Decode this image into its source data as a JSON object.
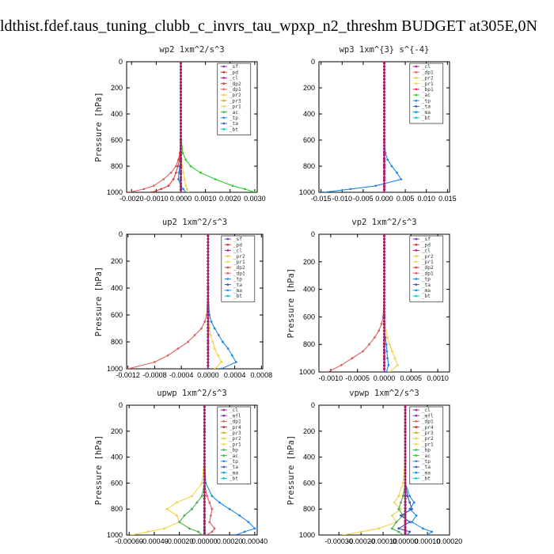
{
  "page": {
    "title": "ldthist.fdef.taus_tuning_clubb_c_invrs_tau_wpxp_n2_threshm  BUDGET at305E,0N"
  },
  "colors": {
    "_sf": "#7b2fbf",
    "_pd": "#c0392b",
    "_cl": "#b5179e",
    "_dp2": "#e53935",
    "_dp1": "#e06060",
    "_dp3": "#e57373",
    "_pr2": "#f7c531",
    "_pr1": "#f0d44a",
    "_pr3": "#d5a800",
    "_pr4": "#c62828",
    "_bp1": "#e91e63",
    "_bp": "#4caf50",
    "_ac": "#29d02a",
    "_tp": "#1e88e5",
    "_ta": "#3f51b5",
    "_ma": "#039be5",
    "_mfl": "#8e24aa",
    "_bt": "#00c8d7"
  },
  "chart_data": [
    {
      "type": "line",
      "title": "wp2   1xm^2/s^3",
      "ylabel": "Pressure [hPa]",
      "xlim": [
        -0.0022,
        0.0031
      ],
      "ylim": [
        1000,
        0
      ],
      "yticks": [
        0,
        200,
        400,
        600,
        800,
        1000
      ],
      "xticks": [
        -0.002,
        -0.001,
        0.0,
        0.001,
        0.002,
        0.003
      ],
      "xtick_labels": [
        "-0.0020",
        "-0.0010",
        "0.0000",
        "0.0010",
        "0.0020",
        "0.0030"
      ],
      "legend": [
        "_sf",
        "_pd",
        "_cl",
        "_dp2",
        "_dp1",
        "_pr2",
        "_pr3",
        "_pr1",
        "_ac",
        "_tp",
        "_ta",
        "_bt"
      ],
      "y": [
        0,
        200,
        400,
        600,
        700,
        750,
        800,
        850,
        900,
        950,
        975,
        1000
      ],
      "series": [
        {
          "name": "_ac",
          "values": [
            0,
            0,
            0,
            2e-05,
            8e-05,
            0.0002,
            0.0004,
            0.0008,
            0.0014,
            0.0021,
            0.0026,
            0.003
          ]
        },
        {
          "name": "_dp1",
          "values": [
            0,
            0,
            0,
            -1e-05,
            -4e-05,
            -0.0001,
            -0.0002,
            -0.0004,
            -0.0007,
            -0.0011,
            -0.0015,
            -0.0021
          ]
        },
        {
          "name": "_dp2",
          "values": [
            0,
            0,
            0,
            -1e-05,
            -3e-05,
            -6e-05,
            -0.00012,
            -0.0002,
            -0.0003,
            -0.0005,
            -0.0008,
            -0.0012
          ]
        },
        {
          "name": "_tp",
          "values": [
            0,
            0,
            0,
            0,
            0,
            -2e-05,
            -4e-05,
            -8e-05,
            -0.0001,
            0,
            0.0001,
            0.0002
          ]
        },
        {
          "name": "_pr1",
          "values": [
            0,
            0,
            0,
            0,
            1e-05,
            3e-05,
            6e-05,
            0.0001,
            0.00015,
            0.0002,
            0.00025,
            0.0003
          ]
        },
        {
          "name": "_sf",
          "values": [
            0,
            0,
            0,
            0,
            0,
            0,
            0,
            0,
            0,
            0,
            0,
            0
          ]
        }
      ]
    },
    {
      "type": "line",
      "title": "wp3   1xm^{3} s^{-4}",
      "ylabel": "",
      "xlim": [
        -0.0155,
        0.0155
      ],
      "ylim": [
        1000,
        0
      ],
      "yticks": [
        0,
        200,
        400,
        600,
        800,
        1000
      ],
      "xticks": [
        -0.015,
        -0.01,
        -0.005,
        0.0,
        0.005,
        0.01,
        0.015
      ],
      "xtick_labels": [
        "-0.015",
        "-0.010",
        "-0.005",
        "0.000",
        "0.005",
        "0.010",
        "0.015"
      ],
      "legend": [
        "_cl",
        "_dp1",
        "_pr2",
        "_pr1",
        "_bp1",
        "_ac",
        "_tp",
        "_ta",
        "_ma",
        "_bt"
      ],
      "y": [
        0,
        200,
        400,
        600,
        700,
        750,
        800,
        850,
        900,
        950,
        975,
        1000
      ],
      "series": [
        {
          "name": "_tp",
          "values": [
            0,
            0,
            0,
            0,
            0.0003,
            0.0008,
            0.0018,
            0.003,
            0.004,
            -0.002,
            -0.008,
            -0.0145
          ]
        },
        {
          "name": "_dp1",
          "values": [
            0,
            0,
            0,
            0,
            0,
            0,
            0,
            0,
            0,
            0,
            0,
            0
          ]
        },
        {
          "name": "_cl",
          "values": [
            0,
            0,
            0,
            0,
            0,
            0,
            0,
            0,
            0,
            0,
            0,
            0
          ]
        }
      ]
    },
    {
      "type": "line",
      "title": "up2   1xm^2/s^3",
      "ylabel": "Pressure [hPa]",
      "xlim": [
        -0.00122,
        0.00082
      ],
      "ylim": [
        1000,
        0
      ],
      "yticks": [
        0,
        200,
        400,
        600,
        800,
        1000
      ],
      "xticks": [
        -0.0012,
        -0.0008,
        -0.0004,
        0.0,
        0.0004,
        0.0008
      ],
      "xtick_labels": [
        "-0.0012",
        "-0.0008",
        "-0.0004",
        "0.0000",
        "0.0004",
        "0.0008"
      ],
      "legend": [
        "_sf",
        "_pd",
        "_cl",
        "_pr2",
        "_pr1",
        "_dp2",
        "_dp1",
        "_tp",
        "_ta",
        "_ma",
        "_bt"
      ],
      "y": [
        0,
        200,
        400,
        600,
        650,
        700,
        750,
        800,
        850,
        900,
        950,
        1000
      ],
      "series": [
        {
          "name": "_dp1",
          "values": [
            0,
            0,
            0,
            -2e-05,
            -5e-05,
            -0.0001,
            -0.0002,
            -0.0003,
            -0.00045,
            -0.0006,
            -0.0008,
            -0.0012
          ]
        },
        {
          "name": "_tp",
          "values": [
            0,
            0,
            0,
            2e-05,
            5e-05,
            0.0001,
            0.00016,
            0.00022,
            0.0003,
            0.00036,
            0.00042,
            0.0002
          ]
        },
        {
          "name": "_pr1",
          "values": [
            0,
            0,
            0,
            0,
            1e-05,
            2e-05,
            4e-05,
            7e-05,
            0.0001,
            0.00015,
            0.0002,
            0.0001
          ]
        },
        {
          "name": "_sf",
          "values": [
            0,
            0,
            0,
            0,
            0,
            0,
            0,
            0,
            0,
            0,
            0,
            0
          ]
        }
      ]
    },
    {
      "type": "line",
      "title": "vp2   1xm^2/s^3",
      "ylabel": "Pressure [hPa]",
      "xlim": [
        -0.00122,
        0.00122
      ],
      "ylim": [
        1000,
        0
      ],
      "yticks": [
        0,
        200,
        400,
        600,
        800,
        1000
      ],
      "xticks": [
        -0.001,
        -0.0005,
        0.0,
        0.0005,
        0.001
      ],
      "xtick_labels": [
        "-0.0010",
        "-0.0005",
        "0.0000",
        "0.0005",
        "0.0010"
      ],
      "legend": [
        "_sf",
        "_pd",
        "_cl",
        "_pr2",
        "_pr1",
        "_dp2",
        "_dp1",
        "_tp",
        "_ta",
        "_ma",
        "_bt"
      ],
      "y": [
        0,
        200,
        400,
        600,
        650,
        700,
        750,
        800,
        850,
        900,
        950,
        1000
      ],
      "series": [
        {
          "name": "_dp1",
          "values": [
            0,
            0,
            0,
            -2e-05,
            -5e-05,
            -0.0001,
            -0.00018,
            -0.00028,
            -0.0004,
            -0.0006,
            -0.0008,
            -0.00105
          ]
        },
        {
          "name": "_pr1",
          "values": [
            0,
            0,
            0,
            0,
            1e-05,
            3e-05,
            6e-05,
            0.0001,
            0.00015,
            0.0002,
            0.00025,
            0.0001
          ]
        },
        {
          "name": "_tp",
          "values": [
            0,
            0,
            0,
            0,
            0,
            0,
            2e-05,
            4e-05,
            5e-05,
            6e-05,
            8e-05,
            4e-05
          ]
        },
        {
          "name": "_sf",
          "values": [
            0,
            0,
            0,
            0,
            0,
            0,
            0,
            0,
            0,
            0,
            0,
            0
          ]
        }
      ]
    },
    {
      "type": "line",
      "title": "upwp   1xm^2/s^3",
      "ylabel": "Pressure [hPa]",
      "xlim": [
        -0.00062,
        0.00042
      ],
      "ylim": [
        1000,
        0
      ],
      "yticks": [
        0,
        200,
        400,
        600,
        800,
        1000
      ],
      "xticks": [
        -0.0006,
        -0.0004,
        -0.0002,
        0.0,
        0.0002,
        0.0004
      ],
      "xtick_labels": [
        "-0.00060",
        "-0.00040",
        "-0.00020",
        "0.00000",
        "0.00020",
        "0.00040"
      ],
      "legend": [
        "_cl",
        "_mfl",
        "_dp1",
        "_pr4",
        "_pr3",
        "_pr2",
        "_pr1",
        "_bp",
        "_ac",
        "_tp",
        "_ta",
        "_ma",
        "_bt"
      ],
      "y": [
        0,
        200,
        400,
        600,
        700,
        750,
        800,
        850,
        900,
        950,
        975,
        1000
      ],
      "series": [
        {
          "name": "_pr1",
          "values": [
            0,
            0,
            0,
            -2e-05,
            -0.0001,
            -0.00022,
            -0.0003,
            -0.00022,
            -0.0002,
            -0.00032,
            -0.00045,
            -0.00058
          ]
        },
        {
          "name": "_tp",
          "values": [
            0,
            0,
            0,
            1e-05,
            6e-05,
            0.00012,
            0.0002,
            0.00028,
            0.00035,
            0.0004,
            0.00032,
            0.00025
          ]
        },
        {
          "name": "_bp",
          "values": [
            0,
            0,
            0,
            0,
            -2e-05,
            -6e-05,
            -0.0001,
            -0.00016,
            -0.0002,
            -0.00012,
            -5e-05,
            -2e-05
          ]
        },
        {
          "name": "_dp1",
          "values": [
            0,
            0,
            0,
            0,
            2e-05,
            4e-05,
            6e-05,
            5e-05,
            4e-05,
            8e-05,
            6e-05,
            2e-05
          ]
        },
        {
          "name": "_cl",
          "values": [
            0,
            0,
            0,
            0,
            0,
            0,
            0,
            0,
            0,
            0,
            0,
            0
          ]
        }
      ]
    },
    {
      "type": "line",
      "title": "vpwp   1xm^2/s^3",
      "ylabel": "Pressure [hPa]",
      "xlim": [
        -0.00039,
        0.0002
      ],
      "ylim": [
        1000,
        0
      ],
      "yticks": [
        0,
        200,
        400,
        600,
        800,
        1000
      ],
      "xticks": [
        -0.0003,
        -0.0002,
        -0.0001,
        0.0,
        0.0001,
        0.0002
      ],
      "xtick_labels": [
        "-0.00030",
        "-0.00020",
        "-0.00010",
        "0.00000",
        "0.00010",
        "0.00020"
      ],
      "legend": [
        "_cl",
        "_mfl",
        "_dp1",
        "_pr4",
        "_pr3",
        "_pr2",
        "_pr1",
        "_bp",
        "_ac",
        "_tp",
        "_ta",
        "_ma",
        "_bt"
      ],
      "y": [
        0,
        200,
        400,
        600,
        700,
        750,
        800,
        850,
        900,
        950,
        975,
        1000
      ],
      "series": [
        {
          "name": "_pr1",
          "values": [
            0,
            0,
            0,
            -1e-05,
            -3e-05,
            -5e-05,
            -2e-05,
            -6e-05,
            -4e-05,
            -0.00012,
            -0.0002,
            -0.00028
          ]
        },
        {
          "name": "_tp",
          "values": [
            0,
            0,
            0,
            0,
            2e-05,
            4e-05,
            2e-05,
            5e-05,
            3e-05,
            8e-05,
            0.00012,
            0.0001
          ]
        },
        {
          "name": "_bp",
          "values": [
            0,
            0,
            0,
            0,
            -1e-05,
            -2e-05,
            -3e-05,
            -1e-05,
            -4e-05,
            -6e-05,
            -3e-05,
            -1e-05
          ]
        },
        {
          "name": "_ta",
          "values": [
            0,
            0,
            0,
            0,
            1e-05,
            2e-05,
            3e-05,
            -2e-05,
            2e-05,
            -3e-05,
            2e-05,
            1e-05
          ]
        },
        {
          "name": "_cl",
          "values": [
            0,
            0,
            0,
            0,
            0,
            0,
            0,
            0,
            0,
            0,
            0,
            0
          ]
        }
      ]
    }
  ]
}
